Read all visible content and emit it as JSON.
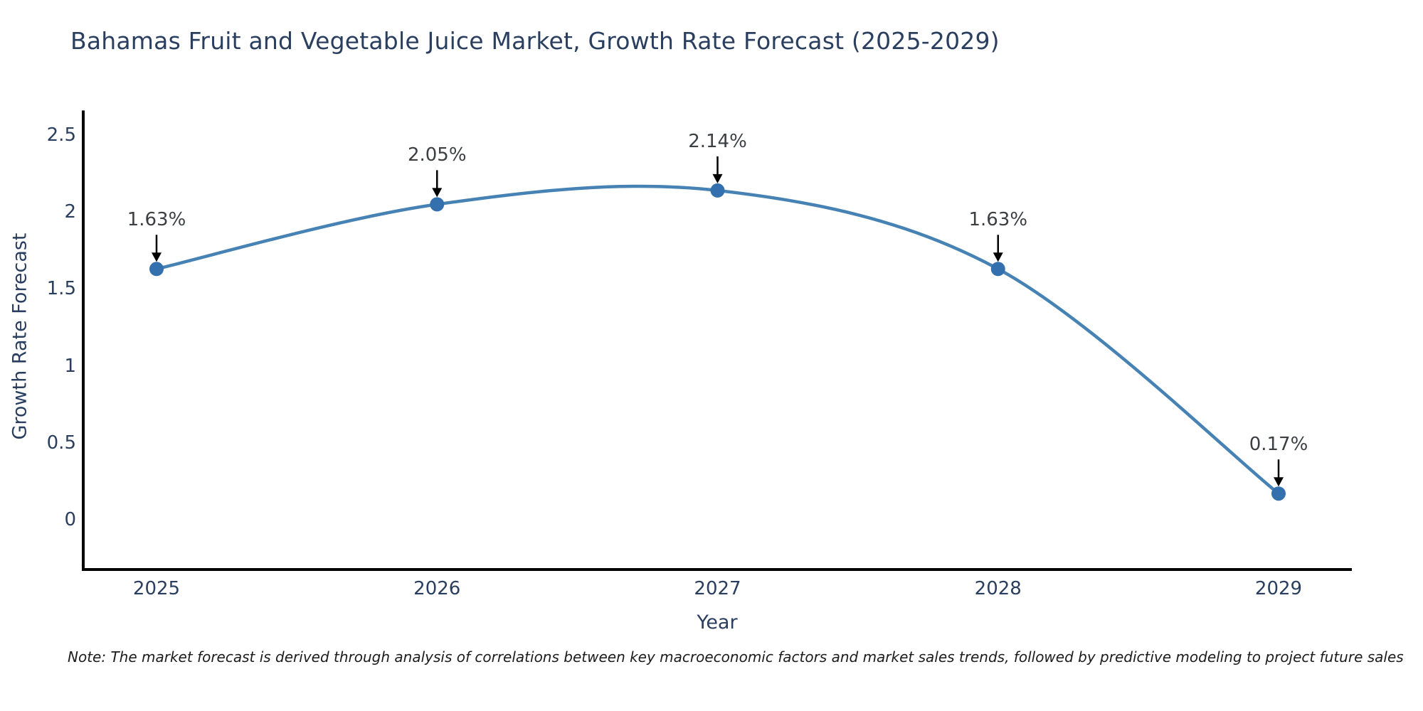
{
  "chart_data": {
    "type": "line",
    "title": "Bahamas Fruit and Vegetable Juice Market, Growth Rate Forecast (2025-2029)",
    "xlabel": "Year",
    "ylabel": "Growth Rate Forecast",
    "x_labels": [
      "2025",
      "2026",
      "2027",
      "2028",
      "2029"
    ],
    "values": [
      1.63,
      2.05,
      2.14,
      1.63,
      0.17
    ],
    "point_labels": [
      "1.63%",
      "2.05%",
      "2.14%",
      "1.63%",
      "0.17%"
    ],
    "y_ticks": [
      0,
      0.5,
      1,
      1.5,
      2,
      2.5
    ],
    "y_tick_labels": [
      "0",
      "0.5",
      "1",
      "1.5",
      "2",
      "2.5"
    ],
    "ylim": [
      -0.32,
      2.66
    ],
    "line_shape": "spline",
    "grid": false,
    "legend_position": "none",
    "colors": {
      "line": "#4682b4",
      "marker": "#3470ad",
      "axis": "#000000",
      "arrow": "#000000",
      "title_text": "#2a3f5f",
      "tick_text": "#2a3f5f",
      "annotation_text": "#3b3f44"
    }
  },
  "note": {
    "text": "Note: The market forecast is derived through analysis of correlations between key macroeconomic factors and market sales trends, followed by predictive modeling to project future sales"
  }
}
